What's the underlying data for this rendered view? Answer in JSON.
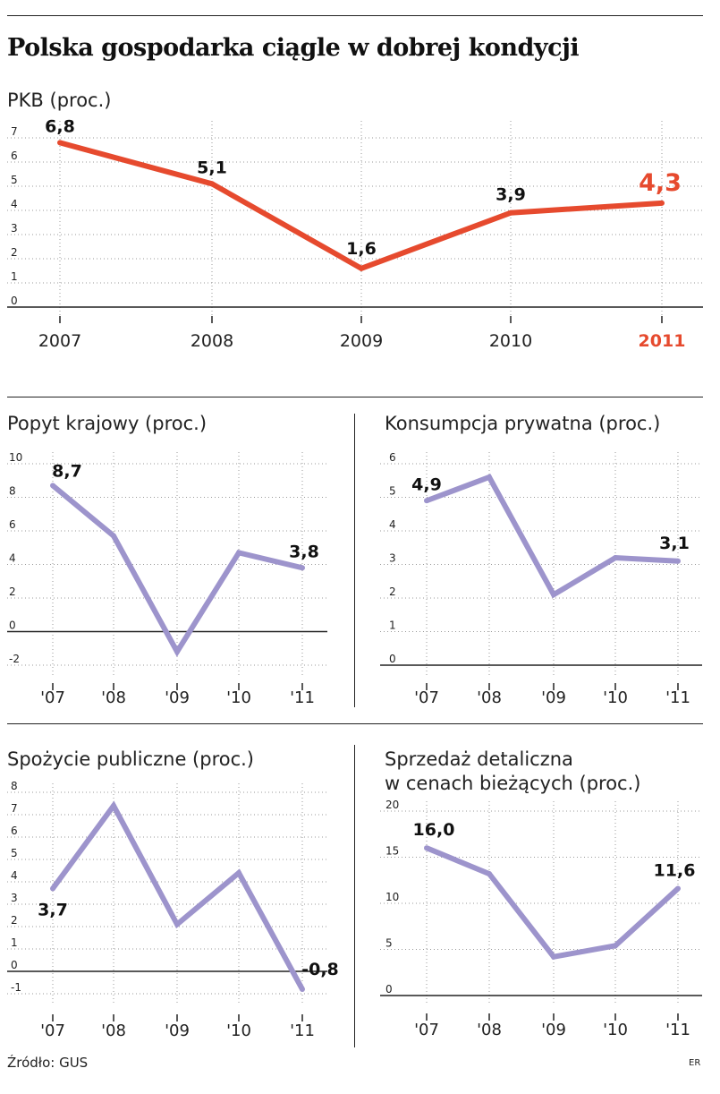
{
  "title": "Polska gospodarka ciągle w dobrej kondycji",
  "source": "Źródło: GUS",
  "credit": "ER",
  "colors": {
    "main_line": "#e64a2e",
    "secondary_line": "#9d94cc",
    "highlight_text": "#e64a2e",
    "text": "#1a1a1a"
  },
  "chart_data": [
    {
      "id": "pkb",
      "type": "line",
      "title": "PKB (proc.)",
      "categories": [
        "2007",
        "2008",
        "2009",
        "2010",
        "2011"
      ],
      "values": [
        6.8,
        5.1,
        1.6,
        3.9,
        4.3
      ],
      "value_labels": [
        "6,8",
        "5,1",
        "1,6",
        "3,9",
        "4,3"
      ],
      "labeled_points": [
        0,
        1,
        2,
        3,
        4
      ],
      "highlight_index": 4,
      "yticks": [
        0,
        1,
        2,
        3,
        4,
        5,
        6,
        7
      ],
      "ytick_labels": [
        "0",
        "1",
        "2",
        "3",
        "4",
        "5",
        "6",
        "7"
      ],
      "ylim": [
        0,
        7
      ],
      "grid": true
    },
    {
      "id": "popyt",
      "type": "line",
      "title": "Popyt krajowy (proc.)",
      "categories": [
        "'07",
        "'08",
        "'09",
        "'10",
        "'11"
      ],
      "values": [
        8.7,
        5.7,
        -1.2,
        4.7,
        3.8
      ],
      "value_labels": [
        "8,7",
        "",
        "",
        "",
        "3,8"
      ],
      "labeled_points": [
        0,
        4
      ],
      "yticks": [
        -2,
        0,
        2,
        4,
        6,
        8,
        10
      ],
      "ytick_labels": [
        "-2",
        "0",
        "2",
        "4",
        "6",
        "8",
        "10"
      ],
      "ylim": [
        -2,
        10
      ],
      "grid": true
    },
    {
      "id": "konsumpcja",
      "type": "line",
      "title": "Konsumpcja prywatna (proc.)",
      "categories": [
        "'07",
        "'08",
        "'09",
        "'10",
        "'11"
      ],
      "values": [
        4.9,
        5.6,
        2.1,
        3.2,
        3.1
      ],
      "value_labels": [
        "4,9",
        "",
        "",
        "",
        "3,1"
      ],
      "labeled_points": [
        0,
        4
      ],
      "yticks": [
        0,
        1,
        2,
        3,
        4,
        5,
        6
      ],
      "ytick_labels": [
        "0",
        "1",
        "2",
        "3",
        "4",
        "5",
        "6"
      ],
      "ylim": [
        0,
        6
      ],
      "grid": true
    },
    {
      "id": "spozycie",
      "type": "line",
      "title": "Spożycie publiczne (proc.)",
      "categories": [
        "'07",
        "'08",
        "'09",
        "'10",
        "'11"
      ],
      "values": [
        3.7,
        7.4,
        2.1,
        4.4,
        -0.8
      ],
      "value_labels": [
        "3,7",
        "",
        "",
        "",
        "-0,8"
      ],
      "labeled_points": [
        0,
        4
      ],
      "yticks": [
        -1,
        0,
        1,
        2,
        3,
        4,
        5,
        6,
        7,
        8
      ],
      "ytick_labels": [
        "-1",
        "0",
        "1",
        "2",
        "3",
        "4",
        "5",
        "6",
        "7",
        "8"
      ],
      "ylim": [
        -1,
        8
      ],
      "grid": true
    },
    {
      "id": "sprzedaz",
      "type": "line",
      "title": "Sprzedaż detaliczna",
      "title_line2": "w cenach bieżących (proc.)",
      "categories": [
        "'07",
        "'08",
        "'09",
        "'10",
        "'11"
      ],
      "values": [
        16.0,
        13.2,
        4.2,
        5.4,
        11.6
      ],
      "value_labels": [
        "16,0",
        "",
        "",
        "",
        "11,6"
      ],
      "labeled_points": [
        0,
        4
      ],
      "yticks": [
        0,
        5,
        10,
        15,
        20
      ],
      "ytick_labels": [
        "0",
        "5",
        "10",
        "15",
        "20"
      ],
      "ylim": [
        0,
        20
      ],
      "grid": true
    }
  ]
}
